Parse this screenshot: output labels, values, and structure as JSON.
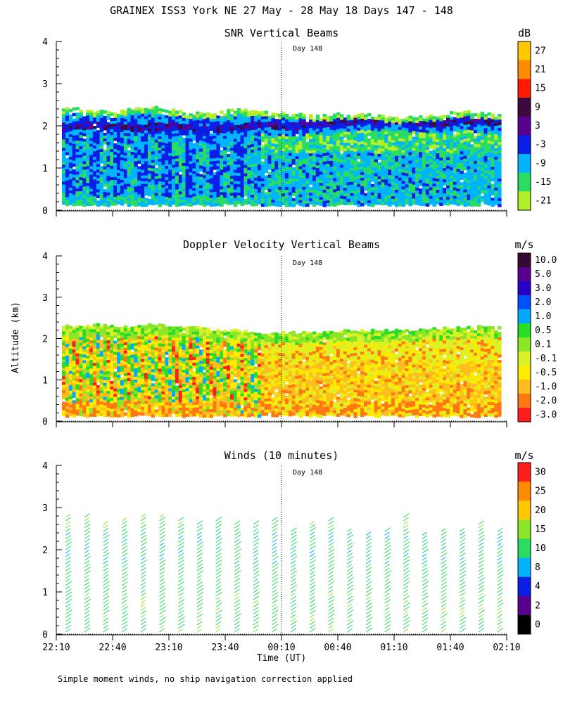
{
  "figure": {
    "title": "GRAINEX ISS3 York NE  27 May - 28 May 18 Days 147 - 148",
    "footnote": "Simple moment winds, no ship navigation correction applied",
    "ylabel": "Altitude (km)",
    "xlabel": "Time (UT)"
  },
  "chart_data": [
    {
      "type": "heatmap",
      "id": "snr",
      "title": "SNR Vertical Beams",
      "unit": "dB",
      "day_marker": "Day 148",
      "ylim": [
        0,
        4
      ],
      "yticks": [
        "0",
        "1",
        "2",
        "3",
        "4"
      ],
      "xlim": [
        0,
        240
      ],
      "xticks": [
        "22:10",
        "22:40",
        "23:10",
        "23:40",
        "00:10",
        "00:40",
        "01:10",
        "01:40",
        "02:10"
      ],
      "colorbar_labels": [
        "27",
        "21",
        "15",
        "9",
        "3",
        "-3",
        "-9",
        "-15",
        "-21"
      ],
      "colorbar_colors": [
        "#ffc800",
        "#ff8c00",
        "#ff1a00",
        "#3d0a3d",
        "#5a0091",
        "#0a1ee6",
        "#00b4ff",
        "#28dc64",
        "#b4f028"
      ],
      "top_km": [
        2.45,
        2.4,
        2.35,
        2.35,
        2.4,
        2.45,
        2.4,
        2.35,
        2.3,
        2.35,
        2.4,
        2.35,
        2.3,
        2.3,
        2.25,
        2.25,
        2.3,
        2.3,
        2.25,
        2.2,
        2.2,
        2.25,
        2.3,
        2.35,
        2.3,
        2.3
      ],
      "layer_km": [
        2.0,
        2.02,
        2.05,
        2.0,
        1.98,
        2.0,
        2.02,
        2.0,
        1.97,
        1.95,
        2.0,
        2.05,
        2.05,
        2.0,
        2.05,
        2.1,
        2.1,
        2.12,
        2.15,
        2.15,
        2.12,
        2.1,
        2.12,
        2.15,
        2.1,
        2.1
      ]
    },
    {
      "type": "heatmap",
      "id": "doppler",
      "title": "Doppler Velocity Vertical Beams",
      "unit": "m/s",
      "day_marker": "Day 148",
      "ylim": [
        0,
        4
      ],
      "yticks": [
        "0",
        "1",
        "2",
        "3",
        "4"
      ],
      "xlim": [
        0,
        240
      ],
      "xticks": [
        "22:10",
        "22:40",
        "23:10",
        "23:40",
        "00:10",
        "00:40",
        "01:10",
        "01:40",
        "02:10"
      ],
      "colorbar_labels": [
        "10.0",
        "5.0",
        "3.0",
        "2.0",
        "1.0",
        "0.5",
        "0.1",
        "-0.1",
        "-0.5",
        "-1.0",
        "-2.0",
        "-3.0"
      ],
      "colorbar_colors": [
        "#320a32",
        "#5a0091",
        "#2800c8",
        "#0050ff",
        "#00aaff",
        "#28dc28",
        "#8ce628",
        "#dcf028",
        "#ffeb00",
        "#ffbe1e",
        "#ff7814",
        "#ff1e1e"
      ],
      "top_km": [
        2.3,
        2.3,
        2.35,
        2.3,
        2.3,
        2.35,
        2.3,
        2.3,
        2.25,
        2.2,
        2.2,
        2.15,
        2.15,
        2.15,
        2.15,
        2.15,
        2.2,
        2.2,
        2.2,
        2.2,
        2.2,
        2.25,
        2.25,
        2.3,
        2.3,
        2.3
      ]
    },
    {
      "type": "scatter",
      "id": "winds",
      "title": "Winds (10 minutes)",
      "unit": "m/s",
      "day_marker": "Day 148",
      "ylim": [
        0,
        4
      ],
      "yticks": [
        "0",
        "1",
        "2",
        "3",
        "4"
      ],
      "xlim": [
        0,
        240
      ],
      "xticks": [
        "22:10",
        "22:40",
        "23:10",
        "23:40",
        "00:10",
        "00:40",
        "01:10",
        "01:40",
        "02:10"
      ],
      "colorbar_labels": [
        "30",
        "25",
        "20",
        "15",
        "10",
        "8",
        "4",
        "2",
        "0"
      ],
      "colorbar_colors": [
        "#ff1e1e",
        "#ff8c00",
        "#ffc800",
        "#8ce628",
        "#28dc64",
        "#00b4ff",
        "#0a1ee6",
        "#5a0091",
        "#000000"
      ],
      "profile_times_min": [
        5,
        15,
        25,
        35,
        45,
        55,
        65,
        75,
        85,
        95,
        105,
        115,
        125,
        135,
        145,
        155,
        165,
        175,
        185,
        195,
        205,
        215,
        225,
        235
      ],
      "profile_tops_km": [
        2.8,
        2.8,
        2.6,
        2.7,
        2.8,
        2.8,
        2.7,
        2.6,
        2.7,
        2.6,
        2.6,
        2.7,
        2.5,
        2.6,
        2.7,
        2.5,
        2.4,
        2.5,
        2.8,
        2.4,
        2.5,
        2.5,
        2.6,
        2.5
      ],
      "representative_speed_ms": 12
    }
  ]
}
